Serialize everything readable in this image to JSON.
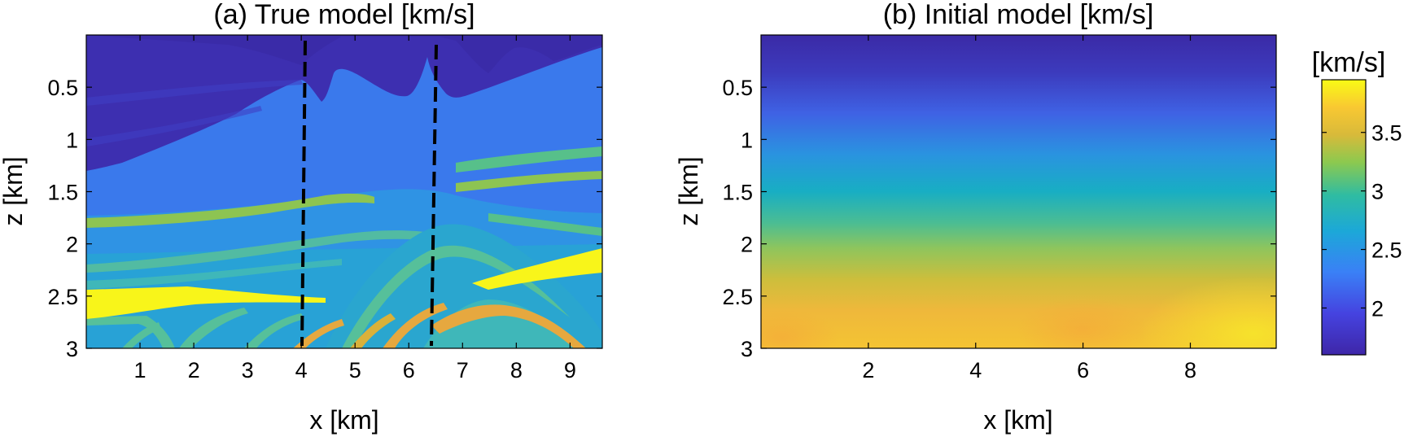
{
  "chart_data": [
    {
      "type": "heatmap",
      "title": "(a) True model [km/s]",
      "xlabel": "x [km]",
      "ylabel": "z [km]",
      "xlim": [
        0,
        9.6
      ],
      "ylim": [
        3,
        0
      ],
      "x_ticks": [
        1,
        2,
        3,
        4,
        5,
        6,
        7,
        8,
        9
      ],
      "y_ticks": [
        0.5,
        1,
        1.5,
        2,
        2.5,
        3
      ],
      "value_range": [
        1.6,
        3.95
      ],
      "grid": false,
      "description_values": {
        "water_layer_velocity": 1.7,
        "sediment_velocity": 2.3,
        "salt_velocity": 3.95
      },
      "dashed_lines_x": [
        4.05,
        6.45
      ]
    },
    {
      "type": "heatmap",
      "title": "(b) Initial model [km/s]",
      "xlabel": "x [km]",
      "ylabel": "z [km]",
      "xlim": [
        0,
        9.6
      ],
      "ylim": [
        3,
        0
      ],
      "x_ticks": [
        2,
        4,
        6,
        8
      ],
      "y_ticks": [
        0.5,
        1,
        1.5,
        2,
        2.5,
        3
      ],
      "value_range": [
        1.6,
        3.95
      ],
      "grid": false,
      "velocity_profile": {
        "z": [
          0,
          0.5,
          1.0,
          1.5,
          2.0,
          2.5,
          3.0
        ],
        "v": [
          1.75,
          2.0,
          2.4,
          2.75,
          3.15,
          3.5,
          3.7
        ]
      }
    }
  ],
  "colorbar": {
    "title": "[km/s]",
    "ticks": [
      2,
      2.5,
      3,
      3.5
    ],
    "range": [
      1.6,
      3.95
    ],
    "colors": [
      "#3e26a8",
      "#4770f2",
      "#2fb8bc",
      "#8cc94f",
      "#f3bb35",
      "#f5e728",
      "#f9fb15"
    ]
  }
}
